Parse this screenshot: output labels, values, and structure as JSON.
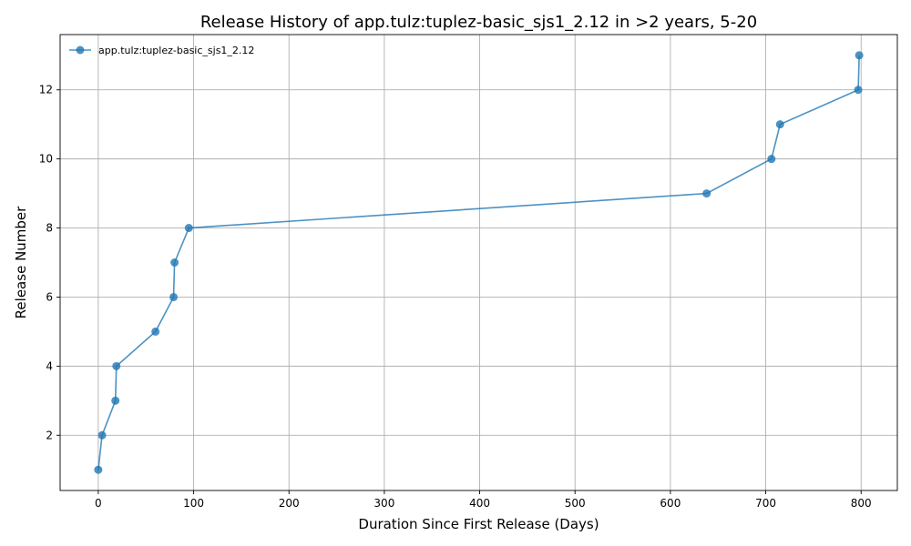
{
  "chart_data": {
    "type": "line",
    "title": "Release History of app.tulz:tuplez-basic_sjs1_2.12 in >2 years, 5-20",
    "xlabel": "Duration Since First Release (Days)",
    "ylabel": "Release Number",
    "xlim": [
      -40,
      838
    ],
    "ylim": [
      0.4,
      13.6
    ],
    "xticks": [
      0,
      100,
      200,
      300,
      400,
      500,
      600,
      700,
      800
    ],
    "yticks": [
      2,
      4,
      6,
      8,
      10,
      12
    ],
    "grid": true,
    "legend_position": "top-left",
    "series": [
      {
        "name": "app.tulz:tuplez-basic_sjs1_2.12",
        "color": "#1f77b4",
        "marker": "circle",
        "x": [
          0,
          4,
          18,
          19,
          60,
          79,
          80,
          95,
          638,
          706,
          715,
          797,
          798
        ],
        "y": [
          1,
          2,
          3,
          4,
          5,
          6,
          7,
          8,
          9,
          10,
          11,
          12,
          13
        ]
      }
    ]
  }
}
